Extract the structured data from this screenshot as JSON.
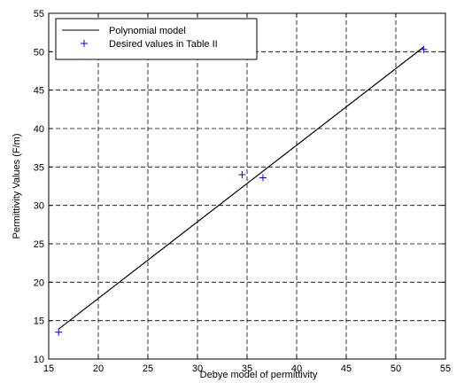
{
  "chart_data": {
    "type": "scatter",
    "title": "",
    "xlabel": "Debye model of permittivity",
    "ylabel": "Permittivity Values (F/m)",
    "xlim": [
      15,
      55
    ],
    "ylim": [
      10,
      55
    ],
    "xticks": [
      15,
      20,
      25,
      30,
      35,
      40,
      45,
      50,
      55
    ],
    "yticks": [
      10,
      15,
      20,
      25,
      30,
      35,
      40,
      45,
      50,
      55
    ],
    "xtick_labels": [
      "15",
      "20",
      "25",
      "30",
      "35",
      "40",
      "45",
      "50",
      "55"
    ],
    "ytick_labels": [
      "10",
      "15",
      "20",
      "25",
      "30",
      "35",
      "40",
      "45",
      "50",
      "55"
    ],
    "grid": true,
    "legend_position": "top-left",
    "series": [
      {
        "name": "Polynomial model",
        "kind": "line",
        "color": "#000000",
        "x": [
          16,
          52.8
        ],
        "y": [
          13.9,
          50.6
        ]
      },
      {
        "name": "Desired values in Table II",
        "kind": "marker",
        "marker": "+",
        "color": "#0000ff",
        "x": [
          16,
          34.5,
          36.6,
          52.8
        ],
        "y": [
          13.5,
          34.0,
          33.6,
          50.3
        ]
      }
    ]
  }
}
